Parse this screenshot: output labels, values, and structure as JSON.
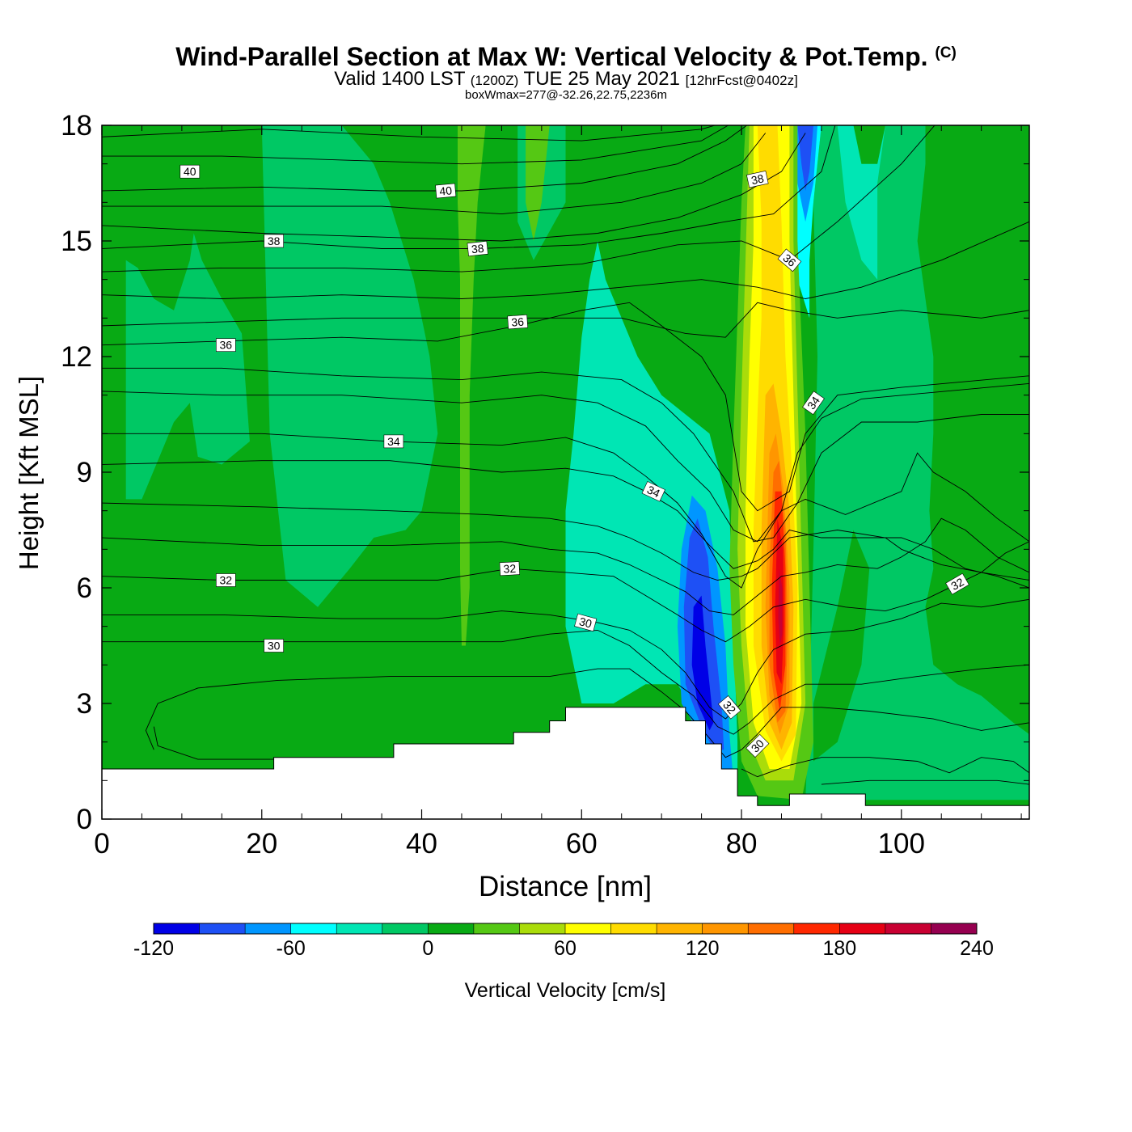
{
  "header": {
    "title": "Wind-Parallel Section at Max W: Vertical Velocity & Pot.Temp.",
    "copyright": "(C)",
    "valid_prefix": "Valid 1400 LST",
    "valid_utc": "(1200Z)",
    "valid_date": "TUE 25 May 2021",
    "forecast": "[12hrFcst@0402z]",
    "box_info": "boxWmax=277@-32.26,22.75,2236m"
  },
  "chart_data": {
    "type": "heatmap",
    "title": "Wind-Parallel Section at Max W: Vertical Velocity & Pot.Temp.",
    "xlabel": "Distance [nm]",
    "ylabel": "Height [Kft MSL]",
    "xlim": [
      0,
      116
    ],
    "ylim": [
      0,
      18
    ],
    "xticks": [
      0,
      20,
      40,
      60,
      80,
      100
    ],
    "yticks": [
      0,
      3,
      6,
      9,
      12,
      15,
      18
    ],
    "colorbar": {
      "label": "Vertical Velocity [cm/s]",
      "levels": [
        -120,
        -100,
        -80,
        -60,
        -40,
        -20,
        0,
        20,
        40,
        60,
        80,
        100,
        120,
        140,
        160,
        180,
        200,
        220,
        240
      ],
      "tick_labels": [
        "-120",
        "-60",
        "0",
        "60",
        "120",
        "180",
        "240"
      ],
      "colors": [
        "#0000e6",
        "#1e50f5",
        "#0096ff",
        "#00ffff",
        "#00e6b4",
        "#00c864",
        "#08aa14",
        "#55c814",
        "#aadc0a",
        "#ffff00",
        "#ffdc00",
        "#ffb400",
        "#ff9600",
        "#ff6e00",
        "#ff2800",
        "#e60014",
        "#c80032",
        "#960050"
      ]
    },
    "features": [
      {
        "name": "updraft core",
        "x": 84,
        "y_range": [
          1,
          18
        ],
        "peak_cm_s": 277,
        "peak_height_m": 2236
      },
      {
        "name": "downdraft core",
        "x": 76,
        "y_range": [
          2,
          8
        ],
        "min_cm_s": -120
      },
      {
        "name": "upper downdraft",
        "x": 88,
        "y_range": [
          14,
          18
        ],
        "min_cm_s": -100
      }
    ],
    "contours": {
      "field": "Potential Temperature",
      "labels": [
        {
          "x": 11,
          "y": 16.8,
          "text": "40",
          "angle": 0
        },
        {
          "x": 43,
          "y": 16.3,
          "text": "40",
          "angle": -5
        },
        {
          "x": 21.5,
          "y": 15.0,
          "text": "38",
          "angle": 0
        },
        {
          "x": 47,
          "y": 14.8,
          "text": "38",
          "angle": -6
        },
        {
          "x": 82,
          "y": 16.6,
          "text": "38",
          "angle": -12
        },
        {
          "x": 15.5,
          "y": 12.3,
          "text": "36",
          "angle": 0
        },
        {
          "x": 52,
          "y": 12.9,
          "text": "36",
          "angle": -4
        },
        {
          "x": 86,
          "y": 14.5,
          "text": "36",
          "angle": 40
        },
        {
          "x": 36.5,
          "y": 9.8,
          "text": "34",
          "angle": 0
        },
        {
          "x": 69,
          "y": 8.5,
          "text": "34",
          "angle": 25
        },
        {
          "x": 89,
          "y": 10.8,
          "text": "34",
          "angle": -55
        },
        {
          "x": 15.5,
          "y": 6.2,
          "text": "32",
          "angle": 0
        },
        {
          "x": 51,
          "y": 6.5,
          "text": "32",
          "angle": -3
        },
        {
          "x": 78.5,
          "y": 2.9,
          "text": "32",
          "angle": 50
        },
        {
          "x": 107,
          "y": 6.1,
          "text": "32",
          "angle": -30
        },
        {
          "x": 21.5,
          "y": 4.5,
          "text": "30",
          "angle": 0
        },
        {
          "x": 60.5,
          "y": 5.1,
          "text": "30",
          "angle": 15
        },
        {
          "x": 82,
          "y": 1.9,
          "text": "30",
          "angle": -45
        }
      ]
    },
    "terrain_kft": [
      [
        0,
        1.3
      ],
      [
        21.5,
        1.3
      ],
      [
        21.5,
        1.6
      ],
      [
        36.5,
        1.6
      ],
      [
        36.5,
        1.95
      ],
      [
        51.5,
        1.95
      ],
      [
        51.5,
        2.25
      ],
      [
        56,
        2.25
      ],
      [
        56,
        2.55
      ],
      [
        58,
        2.55
      ],
      [
        58,
        2.9
      ],
      [
        73,
        2.9
      ],
      [
        73,
        2.55
      ],
      [
        75.5,
        2.55
      ],
      [
        75.5,
        1.95
      ],
      [
        77.5,
        1.95
      ],
      [
        77.5,
        1.3
      ],
      [
        79.5,
        1.3
      ],
      [
        79.5,
        0.6
      ],
      [
        82,
        0.6
      ],
      [
        82,
        0.35
      ],
      [
        86,
        0.35
      ],
      [
        86,
        0.65
      ],
      [
        95.5,
        0.65
      ],
      [
        95.5,
        0.35
      ],
      [
        116,
        0.35
      ]
    ]
  }
}
